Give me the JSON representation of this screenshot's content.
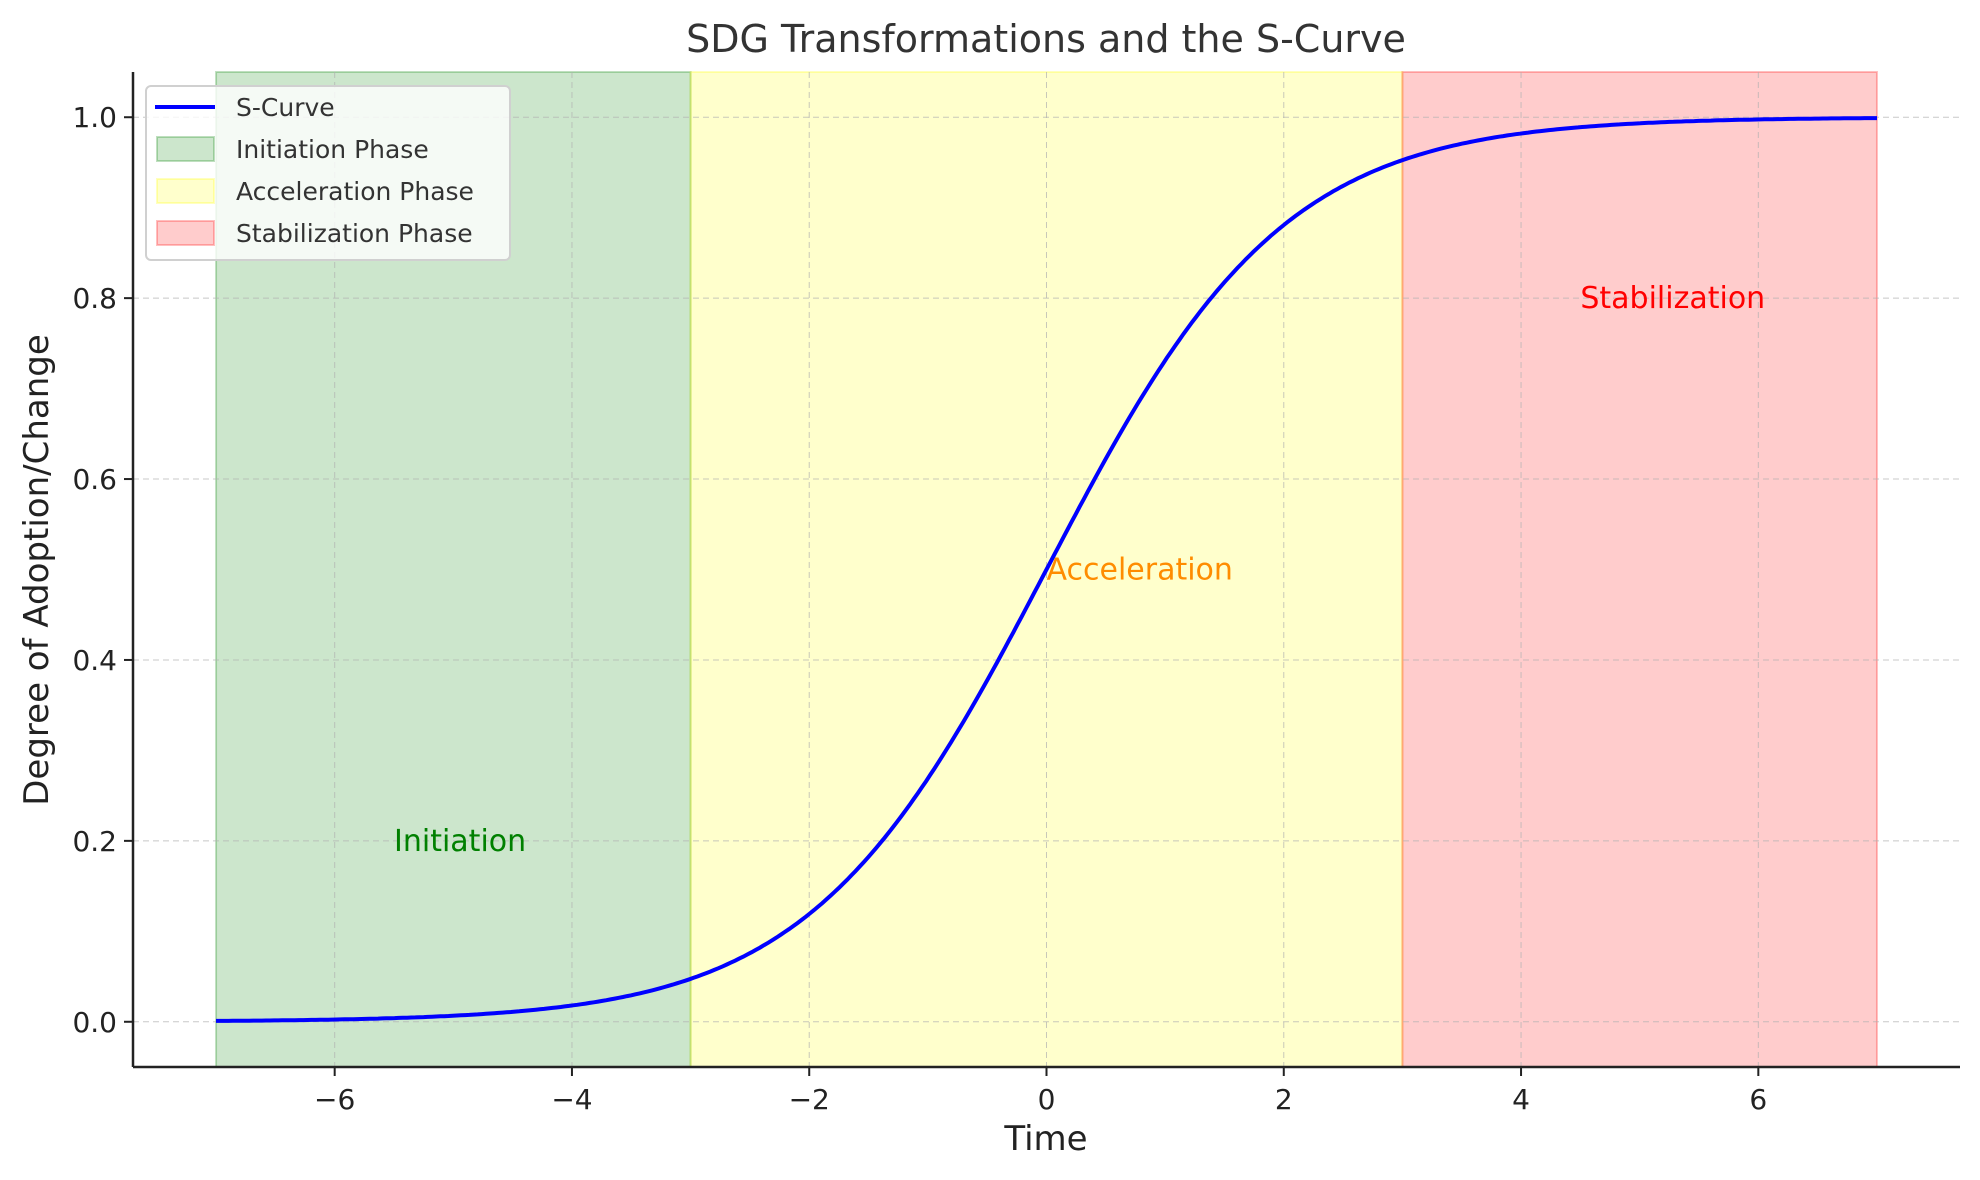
{
  "chart_data": {
    "type": "line",
    "title": "SDG Transformations and the S-Curve",
    "xlabel": "Time",
    "ylabel": "Degree of Adoption/Change",
    "xlim": [
      -7.7,
      7.7
    ],
    "ylim": [
      -0.05,
      1.05
    ],
    "xticks": [
      -6,
      -4,
      -2,
      0,
      2,
      4,
      6
    ],
    "xtick_labels": [
      "−6",
      "−4",
      "−2",
      "0",
      "2",
      "4",
      "6"
    ],
    "yticks": [
      0.0,
      0.2,
      0.4,
      0.6,
      0.8,
      1.0
    ],
    "ytick_labels": [
      "0.0",
      "0.2",
      "0.4",
      "0.6",
      "0.8",
      "1.0"
    ],
    "grid": true,
    "legend_placement": "upper-left",
    "series": [
      {
        "name": "S-Curve",
        "function": "logistic 1/(1+exp(-x))",
        "x_range": [
          -7,
          7
        ],
        "color": "#0000ff"
      }
    ],
    "spans": [
      {
        "name": "Initiation Phase",
        "x": [
          -7,
          -3
        ],
        "color": "#008000",
        "alpha": 0.2
      },
      {
        "name": "Acceleration Phase",
        "x": [
          -3,
          3
        ],
        "color": "#ffff00",
        "alpha": 0.2
      },
      {
        "name": "Stabilization Phase",
        "x": [
          3,
          7
        ],
        "color": "#ff0000",
        "alpha": 0.2
      }
    ],
    "annotations": [
      {
        "text": "Initiation",
        "x": -5.5,
        "y": 0.2,
        "color": "#008000"
      },
      {
        "text": "Acceleration",
        "x": 0,
        "y": 0.5,
        "color": "#ff8c00"
      },
      {
        "text": "Stabilization",
        "x": 4.5,
        "y": 0.8,
        "color": "#ff0000"
      }
    ]
  }
}
